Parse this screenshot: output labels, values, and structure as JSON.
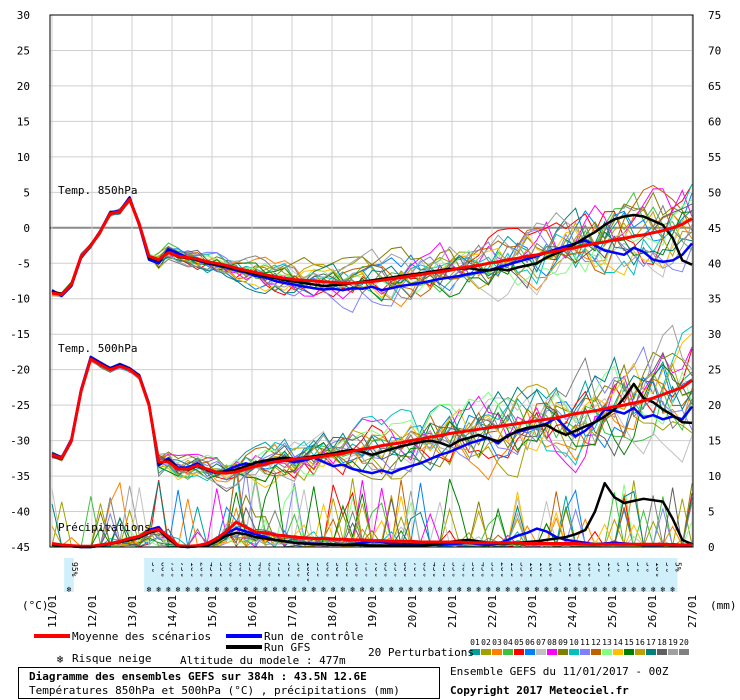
{
  "chart_data": {
    "type": "line",
    "title": "Diagramme des ensembles GEFS sur 384h : 43.5N 12.6E",
    "subtitle": "Températures 850hPa et 500hPa (°C) , précipitations (mm)",
    "y_left_label": "(°C)",
    "y_right_label": "(mm)",
    "y_left_ticks": [
      30,
      25,
      20,
      15,
      10,
      5,
      0,
      -5,
      -10,
      -15,
      -20,
      -25,
      -30,
      -35,
      -40,
      -45
    ],
    "y_right_ticks": [
      75,
      70,
      65,
      60,
      55,
      50,
      45,
      40,
      35,
      30,
      25,
      20,
      15,
      10,
      5,
      0
    ],
    "y_left_range": [
      -45,
      30
    ],
    "y_right_range": [
      0,
      75
    ],
    "x_range_days": [
      11,
      27
    ],
    "x_ticks": [
      "11/01",
      "12/01",
      "13/01",
      "14/01",
      "15/01",
      "16/01",
      "17/01",
      "18/01",
      "19/01",
      "20/01",
      "21/01",
      "22/01",
      "23/01",
      "24/01",
      "25/01",
      "26/01",
      "27/01"
    ],
    "section_labels": {
      "t850": "Temp. 850hPa",
      "t500": "Temp. 500hPa",
      "precip": "Précipitations"
    },
    "snow_risk": {
      "pct_a": [
        "95%"
      ],
      "pct_b": [
        "5%",
        "80%",
        "75%",
        "75%",
        "10%",
        "20%",
        "45%",
        "55%",
        "65%",
        "60%",
        "55%",
        "40%",
        "65%",
        "75%",
        "90%",
        "90%",
        "100%",
        "95%",
        "80%",
        "90%",
        "85%",
        "90%",
        "75%",
        "70%",
        "65%",
        "55%",
        "60%",
        "70%",
        "65%",
        "45%",
        "45%",
        "35%",
        "40%",
        "30%",
        "45%",
        "35%",
        "20%",
        "15%",
        "35%",
        "10%",
        "10%",
        "10%",
        "5%",
        "10%",
        "15%",
        "10%",
        "5%",
        "10%",
        "5%",
        "5%",
        "5%",
        "5%",
        "10%",
        "5%",
        "5%"
      ]
    },
    "series": [
      {
        "name": "Moyenne des scénarios",
        "color": "#ff0000",
        "group": "t850",
        "values": [
          -9.2,
          -9.4,
          -8,
          -4,
          -2.5,
          -0.5,
          2,
          2.3,
          4,
          0.5,
          -4,
          -4.5,
          -3.5,
          -4,
          -4.2,
          -4.4,
          -4.8,
          -5,
          -5.3,
          -5.7,
          -6,
          -6.3,
          -6.6,
          -6.9,
          -7.1,
          -7.3,
          -7.4,
          -7.5,
          -7.6,
          -7.7,
          -7.8,
          -7.8,
          -7.7,
          -7.6,
          -7.4,
          -7.2,
          -7,
          -6.8,
          -6.6,
          -6.4,
          -6.2,
          -6,
          -5.7,
          -5.5,
          -5.3,
          -5,
          -4.8,
          -4.5,
          -4.3,
          -4,
          -3.8,
          -3.5,
          -3.3,
          -3,
          -2.8,
          -2.5,
          -2.2,
          -2,
          -1.7,
          -1.5,
          -1.2,
          -1,
          -0.7,
          -0.4,
          0,
          0.5,
          1.3
        ]
      },
      {
        "name": "Moyenne des scénarios",
        "color": "#ff0000",
        "group": "t500",
        "values": [
          -32,
          -32.5,
          -30,
          -23,
          -18.5,
          -19.3,
          -20,
          -19.5,
          -20,
          -21,
          -25,
          -33,
          -33,
          -34,
          -34,
          -33.5,
          -34,
          -34.5,
          -34.6,
          -34.4,
          -34,
          -33.6,
          -33.3,
          -33,
          -32.8,
          -32.6,
          -32.5,
          -32.4,
          -32.2,
          -32,
          -31.8,
          -31.5,
          -31.2,
          -31,
          -30.7,
          -30.5,
          -30.3,
          -30,
          -29.8,
          -29.5,
          -29.3,
          -29,
          -28.8,
          -28.6,
          -28.4,
          -28.2,
          -28,
          -27.8,
          -27.6,
          -27.4,
          -27.2,
          -27,
          -26.8,
          -26.5,
          -26.2,
          -26,
          -25.8,
          -25.5,
          -25.2,
          -25,
          -24.7,
          -24.4,
          -24,
          -23.5,
          -23,
          -22.5,
          -21.5
        ]
      },
      {
        "name": "Run de contrôle",
        "color": "#0000ff",
        "group": "t850",
        "values": [
          -8.8,
          -9.6,
          -8.2,
          -4.2,
          -2.5,
          -0.4,
          2.2,
          2.4,
          4.3,
          0.3,
          -4.5,
          -5,
          -3,
          -3.6,
          -4.2,
          -4.6,
          -5,
          -5.3,
          -5.6,
          -6,
          -6.3,
          -6.8,
          -7,
          -7.5,
          -7.8,
          -8,
          -8.3,
          -8.5,
          -8.7,
          -8.6,
          -8.8,
          -8.5,
          -8.6,
          -8.3,
          -8.8,
          -8.5,
          -8.2,
          -8,
          -7.8,
          -7.5,
          -7.2,
          -7,
          -6.8,
          -6.5,
          -6.3,
          -6,
          -5.6,
          -5.2,
          -4.8,
          -4.4,
          -4,
          -3.5,
          -3,
          -2.6,
          -2.2,
          -1.8,
          -2.5,
          -3.2,
          -3.5,
          -3.8,
          -2.8,
          -3.4,
          -4.5,
          -4.8,
          -4.6,
          -3.8,
          -2.2
        ]
      },
      {
        "name": "Run de contrôle",
        "color": "#0000ff",
        "group": "t500",
        "values": [
          -31.8,
          -32.4,
          -29.8,
          -22.8,
          -18.2,
          -19,
          -19.8,
          -19.2,
          -19.8,
          -20.8,
          -24.8,
          -33.5,
          -32.5,
          -33.8,
          -33.8,
          -33.2,
          -34.2,
          -34.6,
          -34.2,
          -33.6,
          -33.2,
          -33.6,
          -33,
          -32.6,
          -32.8,
          -33,
          -32.8,
          -32.4,
          -33,
          -33.6,
          -33.4,
          -34,
          -34.3,
          -34.6,
          -34.2,
          -34.6,
          -34,
          -33.6,
          -33.2,
          -32.6,
          -32,
          -31.6,
          -31,
          -30.4,
          -30,
          -29.6,
          -30.4,
          -29.2,
          -28.8,
          -28.4,
          -28,
          -27.6,
          -26.8,
          -28.2,
          -29.4,
          -28.6,
          -27.4,
          -25.6,
          -25.8,
          -26.2,
          -25.4,
          -26.8,
          -26.4,
          -27,
          -26.6,
          -27,
          -25.2
        ]
      },
      {
        "name": "Run GFS",
        "color": "#000000",
        "group": "t850",
        "values": [
          -9,
          -9.3,
          -8.1,
          -4.1,
          -2.4,
          -0.5,
          2.1,
          2.2,
          4.1,
          0.6,
          -4.2,
          -4.6,
          -3.4,
          -4.1,
          -4.3,
          -4.5,
          -4.9,
          -5.2,
          -5.5,
          -5.8,
          -6.2,
          -6.5,
          -6.8,
          -7.1,
          -7.4,
          -7.6,
          -7.8,
          -8,
          -8.2,
          -8.1,
          -8,
          -7.8,
          -7.6,
          -7.4,
          -7.2,
          -7,
          -6.8,
          -6.6,
          -6.4,
          -6.2,
          -6,
          -5.8,
          -5.8,
          -5.7,
          -5.9,
          -6,
          -5.8,
          -6,
          -5.6,
          -5.3,
          -5,
          -4.2,
          -3.6,
          -3,
          -2.2,
          -1.4,
          -0.6,
          0.4,
          1.2,
          1.6,
          1.8,
          1.6,
          1,
          0.4,
          -1.4,
          -4.6,
          -5.2
        ]
      },
      {
        "name": "Run GFS",
        "color": "#000000",
        "group": "t500",
        "values": [
          -32.1,
          -32.6,
          -30.1,
          -23.1,
          -18.4,
          -19.2,
          -19.9,
          -19.4,
          -19.9,
          -20.9,
          -24.9,
          -33.2,
          -32.8,
          -33.9,
          -34.1,
          -33.6,
          -34.1,
          -34.4,
          -34.4,
          -34.1,
          -33.6,
          -33.1,
          -32.8,
          -32.6,
          -32.4,
          -32.6,
          -32.4,
          -32.2,
          -32,
          -31.8,
          -31.5,
          -31.3,
          -31.6,
          -32,
          -31.6,
          -31.2,
          -30.8,
          -30.5,
          -30.2,
          -30,
          -30.3,
          -30.8,
          -30,
          -29.6,
          -29.2,
          -29.7,
          -30.1,
          -29.4,
          -28.6,
          -28.2,
          -28,
          -27.8,
          -28.6,
          -29.2,
          -28.6,
          -28,
          -27.4,
          -26.6,
          -25.6,
          -24,
          -22,
          -24,
          -24.6,
          -25.6,
          -26.4,
          -27.4,
          -27.5
        ]
      },
      {
        "name": "Moyenne des scénarios",
        "color": "#ff0000",
        "group": "precip",
        "values": [
          0.5,
          0.3,
          0.2,
          0.1,
          0.1,
          0.3,
          0.5,
          0.8,
          1.2,
          1.5,
          2.2,
          2.5,
          1.5,
          0.2,
          0.1,
          0.2,
          0.5,
          1.2,
          2.2,
          3.5,
          2.8,
          2.1,
          2,
          1.7,
          1.6,
          1.4,
          1.3,
          1.2,
          1.2,
          1.1,
          1.1,
          1,
          1,
          0.9,
          0.9,
          0.8,
          0.8,
          0.8,
          0.7,
          0.7,
          0.7,
          0.7,
          0.7,
          0.6,
          0.6,
          0.6,
          0.6,
          0.6,
          0.6,
          0.5,
          0.5,
          0.5,
          0.5,
          0.5,
          0.5,
          0.4,
          0.4,
          0.4,
          0.4,
          0.4,
          0.4,
          0.4,
          0.4,
          0.4,
          0.3,
          0.3,
          0.3
        ]
      },
      {
        "name": "Run de contrôle",
        "color": "#0000ff",
        "group": "precip",
        "values": [
          0.4,
          0.2,
          0.1,
          0,
          0,
          0.2,
          0.4,
          0.8,
          1,
          1.4,
          2.4,
          2.8,
          1.2,
          0.1,
          0,
          0.1,
          0.3,
          1,
          2,
          2.6,
          2.2,
          1.8,
          1.4,
          1,
          0.8,
          0.6,
          0.5,
          0.5,
          0.4,
          0.4,
          0.3,
          0.4,
          0.6,
          0.8,
          0.7,
          0.5,
          0.4,
          0.4,
          0.3,
          0.3,
          0.3,
          0.4,
          0.5,
          0.6,
          0.4,
          0.3,
          0.5,
          1,
          1.6,
          2,
          2.6,
          2.2,
          1.4,
          1,
          0.8,
          0.6,
          0.4,
          0.5,
          0.6,
          0.5,
          0.4,
          0.3,
          0.3,
          0.3,
          0.4,
          0.3,
          0.2
        ]
      },
      {
        "name": "Run GFS",
        "color": "#000000",
        "group": "precip",
        "values": [
          0.3,
          0.2,
          0.1,
          0,
          0,
          0.2,
          0.5,
          0.7,
          1,
          1.3,
          2,
          2.4,
          1.2,
          0.1,
          0,
          0.1,
          0.2,
          0.8,
          1.6,
          2,
          1.8,
          1.4,
          1.2,
          1,
          0.8,
          0.6,
          0.5,
          0.4,
          0.4,
          0.3,
          0.3,
          0.3,
          0.3,
          0.2,
          0.2,
          0.2,
          0.2,
          0.2,
          0.2,
          0.3,
          0.5,
          0.7,
          0.9,
          1,
          0.8,
          0.6,
          0.5,
          0.5,
          0.6,
          0.7,
          0.8,
          1,
          1.2,
          1.4,
          1.8,
          2.4,
          5,
          9,
          7,
          6.2,
          6.5,
          6.8,
          6.6,
          6.4,
          4,
          1,
          0.4
        ]
      }
    ],
    "legend": {
      "mean": "Moyenne des scénarios",
      "control": "Run de contrôle",
      "gfs": "Run GFS",
      "perturbations": "20 Perturbations",
      "perturbation_numbers": [
        "01",
        "02",
        "03",
        "04",
        "05",
        "06",
        "07",
        "08",
        "09",
        "10",
        "11",
        "12",
        "13",
        "14",
        "15",
        "16",
        "17",
        "18",
        "19",
        "20"
      ],
      "perturbation_colors": [
        "#00a0a0",
        "#a0a000",
        "#ff8000",
        "#40c040",
        "#ff0000",
        "#0080ff",
        "#c0c0c0",
        "#ff00ff",
        "#808000",
        "#00c0c0",
        "#8080ff",
        "#c06000",
        "#80ff80",
        "#ffc000",
        "#008000",
        "#c0a000",
        "#008080",
        "#606060",
        "#a0a0a0",
        "#808080"
      ],
      "snow_risk": "Risque neige",
      "altitude": "Altitude du modele : 477m"
    },
    "footer": {
      "title": "Diagramme des ensembles GEFS sur 384h : 43.5N 12.6E",
      "subtitle": "Températures 850hPa et 500hPa (°C) , précipitations (mm)",
      "run": "Ensemble GEFS du 11/01/2017 - 00Z",
      "copyright": "Copyright 2017 Meteociel.fr"
    },
    "colors": {
      "mean": "#ff0000",
      "control": "#0000ff",
      "gfs": "#000000",
      "grid": "#cfcfcf",
      "zero": "#8a8a8a",
      "snow": "#cfeffb"
    }
  }
}
